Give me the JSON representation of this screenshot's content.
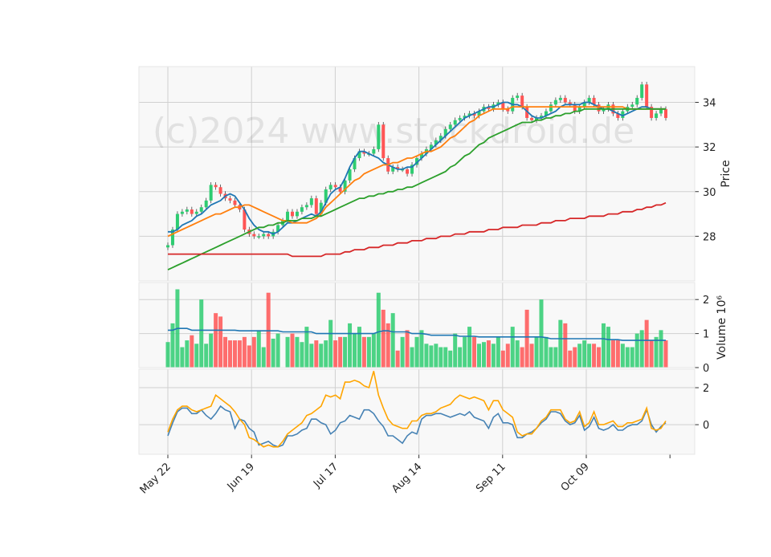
{
  "watermark": "(c)2024 www.stockdroid.de",
  "chart_data": [
    {
      "type": "candlestick",
      "ylabel": "Price",
      "ylim": [
        26.0,
        35.6
      ],
      "yticks": [
        28,
        30,
        32,
        34
      ],
      "grid": true,
      "x_tick_labels": [
        "May 22",
        "Jun 19",
        "Jul 17",
        "Aug 14",
        "Sep 11",
        "Oct 09"
      ],
      "ohlc_close": [
        27.6,
        28.3,
        29.0,
        29.1,
        29.2,
        29.0,
        29.1,
        29.3,
        29.6,
        30.3,
        30.2,
        29.9,
        29.7,
        29.6,
        29.4,
        29.2,
        28.3,
        28.1,
        28.0,
        28.0,
        28.1,
        28.0,
        28.2,
        28.5,
        28.7,
        29.1,
        28.9,
        29.1,
        29.3,
        29.4,
        29.7,
        29.0,
        29.5,
        30.1,
        30.3,
        30.2,
        30.0,
        30.5,
        31.0,
        31.5,
        31.8,
        31.7,
        31.7,
        31.9,
        33.0,
        31.5,
        30.9,
        31.1,
        31.0,
        31.0,
        30.8,
        31.2,
        31.5,
        31.7,
        31.9,
        32.1,
        32.3,
        32.5,
        32.8,
        33.0,
        33.2,
        33.3,
        33.4,
        33.5,
        33.4,
        33.6,
        33.8,
        33.7,
        33.9,
        34.0,
        33.7,
        33.6,
        34.2,
        34.3,
        33.8,
        33.3,
        33.2,
        33.3,
        33.4,
        33.6,
        33.9,
        34.1,
        34.2,
        34.0,
        33.9,
        33.6,
        33.8,
        34.0,
        34.2,
        33.9,
        33.6,
        33.7,
        33.9,
        33.5,
        33.3,
        33.6,
        33.8,
        33.9,
        34.2,
        34.8,
        33.8,
        33.3,
        33.5,
        33.7,
        33.3
      ],
      "series": [
        {
          "name": "",
          "color": "#1f77b4",
          "values": [
            28.2,
            28.2,
            28.3,
            28.5,
            28.6,
            28.7,
            28.9,
            29.0,
            29.2,
            29.4,
            29.5,
            29.6,
            29.8,
            29.9,
            29.8,
            29.5,
            29.2,
            28.8,
            28.5,
            28.3,
            28.2,
            28.2,
            28.1,
            28.2,
            28.4,
            28.6,
            28.6,
            28.7,
            28.8,
            28.9,
            29.0,
            28.9,
            29.1,
            29.5,
            29.9,
            30.1,
            30.2,
            30.6,
            31.1,
            31.5,
            31.8,
            31.8,
            31.7,
            31.6,
            31.5,
            31.3,
            31.2,
            31.1,
            31.0,
            31.0,
            31.1,
            31.1,
            31.3,
            31.5,
            31.7,
            31.9,
            32.1,
            32.3,
            32.5,
            32.7,
            32.9,
            33.1,
            33.3,
            33.4,
            33.5,
            33.6,
            33.7,
            33.8,
            33.8,
            33.9,
            34.0,
            34.0,
            33.9,
            33.9,
            33.8,
            33.6,
            33.4,
            33.3,
            33.3,
            33.4,
            33.5,
            33.6,
            33.8,
            33.9,
            33.9,
            33.9,
            33.9,
            34.0,
            34.0,
            33.9,
            33.8,
            33.7,
            33.7,
            33.6,
            33.5,
            33.4,
            33.5,
            33.6,
            33.7,
            33.8,
            33.8,
            33.7,
            33.7,
            33.7,
            33.7
          ]
        },
        {
          "name": "",
          "color": "#ff7f0e",
          "values": [
            28.0,
            28.1,
            28.2,
            28.3,
            28.4,
            28.5,
            28.6,
            28.7,
            28.8,
            28.9,
            29.0,
            29.0,
            29.1,
            29.2,
            29.3,
            29.3,
            29.4,
            29.4,
            29.3,
            29.2,
            29.1,
            29.0,
            28.9,
            28.8,
            28.7,
            28.7,
            28.6,
            28.6,
            28.6,
            28.6,
            28.7,
            28.8,
            29.0,
            29.3,
            29.5,
            29.7,
            29.9,
            30.1,
            30.3,
            30.5,
            30.6,
            30.8,
            30.9,
            31.0,
            31.1,
            31.2,
            31.2,
            31.3,
            31.3,
            31.4,
            31.5,
            31.5,
            31.6,
            31.7,
            31.8,
            31.8,
            31.9,
            32.0,
            32.2,
            32.4,
            32.5,
            32.7,
            32.9,
            33.1,
            33.2,
            33.4,
            33.5,
            33.6,
            33.7,
            33.7,
            33.7,
            33.7,
            33.8,
            33.8,
            33.8,
            33.8,
            33.8,
            33.8,
            33.8,
            33.8,
            33.8,
            33.8,
            33.8,
            33.8,
            33.8,
            33.8,
            33.8,
            33.8,
            33.8,
            33.8,
            33.8,
            33.8,
            33.8,
            33.8,
            33.8,
            33.8,
            33.7,
            33.7,
            33.7,
            33.7,
            33.7,
            33.7,
            33.7,
            33.7,
            33.7
          ]
        },
        {
          "name": "",
          "color": "#2ca02c",
          "values": [
            26.5,
            26.6,
            26.7,
            26.8,
            26.9,
            27.0,
            27.1,
            27.2,
            27.3,
            27.4,
            27.5,
            27.6,
            27.7,
            27.8,
            27.9,
            28.0,
            28.1,
            28.2,
            28.3,
            28.4,
            28.4,
            28.5,
            28.5,
            28.6,
            28.6,
            28.7,
            28.7,
            28.7,
            28.8,
            28.8,
            28.8,
            28.9,
            28.9,
            29.0,
            29.1,
            29.2,
            29.3,
            29.4,
            29.5,
            29.6,
            29.7,
            29.7,
            29.8,
            29.8,
            29.9,
            29.9,
            30.0,
            30.0,
            30.1,
            30.1,
            30.2,
            30.2,
            30.3,
            30.4,
            30.5,
            30.6,
            30.7,
            30.8,
            30.9,
            31.1,
            31.2,
            31.4,
            31.6,
            31.7,
            31.9,
            32.1,
            32.2,
            32.4,
            32.5,
            32.6,
            32.7,
            32.8,
            32.9,
            33.0,
            33.1,
            33.1,
            33.1,
            33.2,
            33.2,
            33.3,
            33.3,
            33.4,
            33.4,
            33.5,
            33.5,
            33.6,
            33.6,
            33.7,
            33.7,
            33.7,
            33.7,
            33.7,
            33.7,
            33.7,
            33.7,
            33.7,
            33.7,
            33.7,
            33.7,
            33.7,
            33.7,
            33.7,
            33.7,
            33.7,
            33.7
          ]
        },
        {
          "name": "",
          "color": "#d62728",
          "values": [
            27.2,
            27.2,
            27.2,
            27.2,
            27.2,
            27.2,
            27.2,
            27.2,
            27.2,
            27.2,
            27.2,
            27.2,
            27.2,
            27.2,
            27.2,
            27.2,
            27.2,
            27.2,
            27.2,
            27.2,
            27.2,
            27.2,
            27.2,
            27.2,
            27.2,
            27.2,
            27.1,
            27.1,
            27.1,
            27.1,
            27.1,
            27.1,
            27.1,
            27.2,
            27.2,
            27.2,
            27.2,
            27.3,
            27.3,
            27.4,
            27.4,
            27.4,
            27.5,
            27.5,
            27.5,
            27.6,
            27.6,
            27.6,
            27.7,
            27.7,
            27.7,
            27.8,
            27.8,
            27.8,
            27.9,
            27.9,
            27.9,
            28.0,
            28.0,
            28.0,
            28.1,
            28.1,
            28.1,
            28.2,
            28.2,
            28.2,
            28.2,
            28.3,
            28.3,
            28.3,
            28.4,
            28.4,
            28.4,
            28.4,
            28.5,
            28.5,
            28.5,
            28.5,
            28.6,
            28.6,
            28.6,
            28.7,
            28.7,
            28.7,
            28.8,
            28.8,
            28.8,
            28.8,
            28.9,
            28.9,
            28.9,
            28.9,
            29.0,
            29.0,
            29.0,
            29.1,
            29.1,
            29.1,
            29.2,
            29.2,
            29.3,
            29.3,
            29.4,
            29.4,
            29.5
          ]
        }
      ]
    },
    {
      "type": "bar",
      "ylabel": "Volume",
      "ylabel_unit": "10⁶",
      "ylim": [
        0,
        2.5
      ],
      "yticks": [
        0,
        1,
        2
      ],
      "up_color": "#2ecc71",
      "down_color": "#ff5555",
      "values": [
        0.75,
        1.3,
        2.3,
        0.6,
        0.8,
        0.95,
        0.7,
        2.0,
        0.7,
        1.0,
        1.6,
        1.5,
        0.9,
        0.8,
        0.8,
        0.8,
        0.9,
        0.65,
        0.9,
        1.1,
        0.6,
        2.2,
        0.85,
        1.0,
        0.0,
        0.9,
        1.0,
        0.9,
        0.75,
        1.2,
        0.7,
        0.8,
        0.7,
        0.8,
        1.4,
        0.8,
        0.9,
        0.9,
        1.3,
        1.0,
        1.2,
        0.9,
        0.9,
        1.0,
        2.2,
        1.7,
        1.3,
        1.6,
        0.5,
        0.9,
        1.1,
        0.6,
        0.9,
        1.1,
        0.7,
        0.65,
        0.7,
        0.6,
        0.6,
        0.5,
        1.0,
        0.6,
        0.9,
        1.2,
        0.9,
        0.7,
        0.75,
        0.8,
        0.7,
        0.9,
        0.5,
        0.7,
        1.2,
        0.8,
        0.6,
        1.7,
        0.7,
        0.9,
        2.0,
        0.9,
        0.6,
        0.6,
        1.4,
        1.3,
        0.5,
        0.6,
        0.7,
        0.8,
        0.7,
        0.7,
        0.6,
        1.3,
        1.2,
        0.8,
        0.8,
        0.7,
        0.6,
        0.6,
        1.0,
        1.1,
        1.4,
        0.8,
        0.9,
        1.1,
        0.8
      ],
      "avg_line": {
        "color": "#1f77b4",
        "values": [
          1.1,
          1.1,
          1.15,
          1.15,
          1.15,
          1.1,
          1.1,
          1.1,
          1.1,
          1.1,
          1.1,
          1.1,
          1.1,
          1.1,
          1.1,
          1.08,
          1.08,
          1.08,
          1.08,
          1.08,
          1.08,
          1.08,
          1.08,
          1.08,
          1.05,
          1.05,
          1.05,
          1.05,
          1.05,
          1.05,
          1.05,
          1.0,
          1.0,
          1.0,
          1.0,
          1.0,
          1.0,
          1.0,
          1.0,
          1.0,
          1.0,
          1.0,
          1.0,
          1.0,
          1.05,
          1.08,
          1.08,
          1.05,
          1.05,
          1.05,
          1.05,
          1.0,
          1.0,
          1.0,
          0.98,
          0.95,
          0.95,
          0.95,
          0.95,
          0.95,
          0.95,
          0.92,
          0.92,
          0.92,
          0.92,
          0.9,
          0.9,
          0.9,
          0.9,
          0.9,
          0.9,
          0.9,
          0.9,
          0.9,
          0.9,
          0.9,
          0.9,
          0.9,
          0.9,
          0.88,
          0.85,
          0.85,
          0.85,
          0.85,
          0.85,
          0.85,
          0.85,
          0.85,
          0.85,
          0.85,
          0.85,
          0.85,
          0.82,
          0.82,
          0.82,
          0.8,
          0.8,
          0.8,
          0.8,
          0.8,
          0.8,
          0.8,
          0.8,
          0.8,
          0.8
        ]
      }
    },
    {
      "type": "line",
      "ylim": [
        -1.6,
        3.0
      ],
      "yticks": [
        0,
        2
      ],
      "series": [
        {
          "name": "",
          "color": "#4682b4",
          "values": [
            -0.6,
            0.1,
            0.7,
            0.9,
            0.9,
            0.6,
            0.6,
            0.8,
            0.5,
            0.3,
            0.6,
            1.0,
            0.8,
            0.7,
            -0.2,
            0.3,
            0.2,
            -0.2,
            -0.4,
            -1.1,
            -1.0,
            -0.9,
            -1.1,
            -1.2,
            -1.1,
            -0.6,
            -0.6,
            -0.5,
            -0.3,
            -0.2,
            0.3,
            0.3,
            0.1,
            0.0,
            -0.5,
            -0.3,
            0.1,
            0.2,
            0.5,
            0.4,
            0.3,
            0.8,
            0.8,
            0.6,
            0.2,
            -0.1,
            -0.6,
            -0.6,
            -0.8,
            -1.0,
            -0.6,
            -0.4,
            -0.5,
            0.3,
            0.5,
            0.5,
            0.6,
            0.6,
            0.5,
            0.4,
            0.5,
            0.6,
            0.5,
            0.7,
            0.4,
            0.3,
            0.2,
            -0.2,
            0.4,
            0.6,
            0.1,
            0.1,
            0.0,
            -0.7,
            -0.7,
            -0.5,
            -0.4,
            -0.2,
            0.1,
            0.3,
            0.7,
            0.7,
            0.6,
            0.2,
            0.0,
            0.1,
            0.5,
            -0.3,
            -0.1,
            0.4,
            -0.2,
            -0.3,
            -0.2,
            0.0,
            -0.3,
            -0.3,
            -0.1,
            0.0,
            0.0,
            0.2,
            0.8,
            0.0,
            -0.4,
            -0.1,
            0.1
          ]
        },
        {
          "name": "",
          "color": "#ffa500",
          "values": [
            -0.4,
            0.3,
            0.8,
            1.0,
            1.0,
            0.8,
            0.7,
            0.8,
            0.9,
            1.0,
            1.6,
            1.4,
            1.2,
            1.0,
            0.7,
            0.3,
            0.0,
            -0.7,
            -0.8,
            -1.0,
            -1.2,
            -1.1,
            -1.2,
            -1.2,
            -0.9,
            -0.5,
            -0.3,
            -0.1,
            0.1,
            0.5,
            0.6,
            0.8,
            1.0,
            1.6,
            1.5,
            1.6,
            1.4,
            2.3,
            2.3,
            2.4,
            2.3,
            2.1,
            2.0,
            2.9,
            1.6,
            0.9,
            0.3,
            0.0,
            -0.1,
            -0.2,
            -0.2,
            0.2,
            0.2,
            0.5,
            0.6,
            0.6,
            0.7,
            0.9,
            1.0,
            1.1,
            1.4,
            1.6,
            1.5,
            1.4,
            1.5,
            1.4,
            1.3,
            0.8,
            1.3,
            1.3,
            0.8,
            0.6,
            0.4,
            -0.4,
            -0.6,
            -0.5,
            -0.5,
            -0.2,
            0.2,
            0.4,
            0.8,
            0.8,
            0.8,
            0.3,
            0.1,
            0.2,
            0.7,
            -0.1,
            0.1,
            0.7,
            0.0,
            0.0,
            0.1,
            0.2,
            -0.1,
            -0.1,
            0.1,
            0.1,
            0.2,
            0.3,
            0.9,
            -0.2,
            -0.3,
            -0.2,
            0.2
          ]
        }
      ]
    }
  ]
}
